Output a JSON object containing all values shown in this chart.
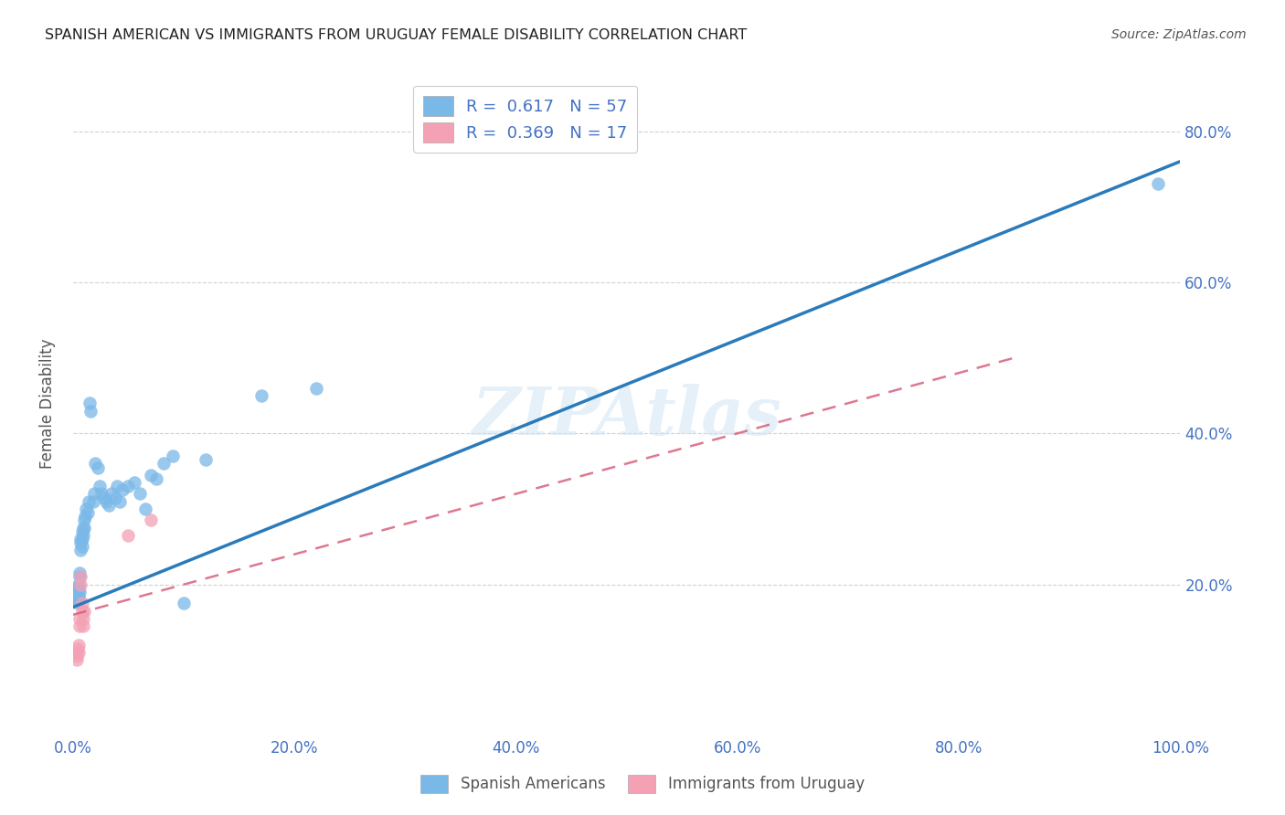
{
  "title": "SPANISH AMERICAN VS IMMIGRANTS FROM URUGUAY FEMALE DISABILITY CORRELATION CHART",
  "source": "Source: ZipAtlas.com",
  "ylabel": "Female Disability",
  "xlim": [
    0.0,
    1.0
  ],
  "ylim": [
    0.0,
    0.88
  ],
  "xtick_labels": [
    "0.0%",
    "20.0%",
    "40.0%",
    "60.0%",
    "80.0%",
    "100.0%"
  ],
  "xtick_vals": [
    0.0,
    0.2,
    0.4,
    0.6,
    0.8,
    1.0
  ],
  "ytick_vals": [
    0.2,
    0.4,
    0.6,
    0.8
  ],
  "right_ytick_labels": [
    "20.0%",
    "40.0%",
    "60.0%",
    "80.0%"
  ],
  "right_ytick_vals": [
    0.2,
    0.4,
    0.6,
    0.8
  ],
  "blue_color": "#7ab8e8",
  "pink_color": "#f4a0b5",
  "blue_line_color": "#2b7bba",
  "pink_line_color": "#d9607a",
  "blue_R": 0.617,
  "blue_N": 57,
  "pink_R": 0.369,
  "pink_N": 17,
  "watermark_text": "ZIPAtlas",
  "legend_label_blue": "Spanish Americans",
  "legend_label_pink": "Immigrants from Uruguay",
  "blue_x": [
    0.002,
    0.002,
    0.003,
    0.003,
    0.004,
    0.004,
    0.004,
    0.005,
    0.005,
    0.005,
    0.005,
    0.006,
    0.006,
    0.006,
    0.007,
    0.007,
    0.007,
    0.008,
    0.008,
    0.008,
    0.009,
    0.009,
    0.01,
    0.01,
    0.011,
    0.012,
    0.013,
    0.014,
    0.015,
    0.016,
    0.018,
    0.019,
    0.02,
    0.022,
    0.024,
    0.026,
    0.028,
    0.03,
    0.032,
    0.035,
    0.038,
    0.04,
    0.042,
    0.045,
    0.05,
    0.055,
    0.06,
    0.065,
    0.07,
    0.075,
    0.082,
    0.09,
    0.1,
    0.12,
    0.17,
    0.22,
    0.98
  ],
  "blue_y": [
    0.195,
    0.185,
    0.19,
    0.18,
    0.175,
    0.185,
    0.18,
    0.2,
    0.195,
    0.185,
    0.18,
    0.215,
    0.21,
    0.19,
    0.26,
    0.255,
    0.245,
    0.27,
    0.26,
    0.25,
    0.275,
    0.265,
    0.285,
    0.275,
    0.29,
    0.3,
    0.295,
    0.31,
    0.44,
    0.43,
    0.31,
    0.32,
    0.36,
    0.355,
    0.33,
    0.32,
    0.315,
    0.31,
    0.305,
    0.32,
    0.315,
    0.33,
    0.31,
    0.325,
    0.33,
    0.335,
    0.32,
    0.3,
    0.345,
    0.34,
    0.36,
    0.37,
    0.175,
    0.365,
    0.45,
    0.46,
    0.73
  ],
  "pink_x": [
    0.002,
    0.003,
    0.003,
    0.004,
    0.005,
    0.005,
    0.006,
    0.006,
    0.007,
    0.007,
    0.008,
    0.008,
    0.009,
    0.009,
    0.01,
    0.05,
    0.07
  ],
  "pink_y": [
    0.11,
    0.105,
    0.1,
    0.115,
    0.12,
    0.11,
    0.155,
    0.145,
    0.21,
    0.2,
    0.175,
    0.165,
    0.155,
    0.145,
    0.165,
    0.265,
    0.285
  ],
  "blue_line_x": [
    0.0,
    1.0
  ],
  "blue_line_y_start": 0.17,
  "blue_line_y_end": 0.76,
  "pink_line_x": [
    0.0,
    0.85
  ],
  "pink_line_y_start": 0.16,
  "pink_line_y_end": 0.5,
  "background_color": "#ffffff",
  "grid_color": "#cccccc",
  "title_color": "#222222",
  "source_color": "#555555"
}
